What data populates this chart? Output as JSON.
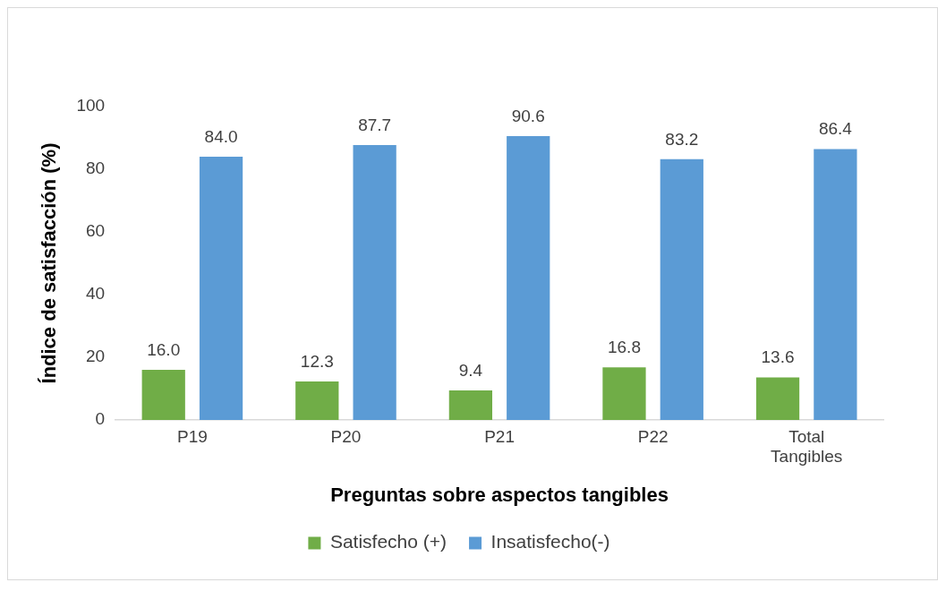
{
  "chart_data": {
    "type": "bar",
    "xlabel": "Preguntas sobre aspectos tangibles",
    "ylabel": "Índice de satisfacción (%)",
    "categories": [
      "P19",
      "P20",
      "P21",
      "P22",
      "Total Tangibles"
    ],
    "series": [
      {
        "name": "Satisfecho (+)",
        "color": "#70ad47",
        "values": [
          16.0,
          12.3,
          9.4,
          16.8,
          13.6
        ],
        "value_labels": [
          "16.0",
          "12.3",
          "9.4",
          "16.8",
          "13.6"
        ]
      },
      {
        "name": "Insatisfecho(-)",
        "color": "#5b9bd5",
        "values": [
          84.0,
          87.7,
          90.6,
          83.2,
          86.4
        ],
        "value_labels": [
          "84.0",
          "87.7",
          "90.6",
          "83.2",
          "86.4"
        ]
      }
    ],
    "ylim": [
      0,
      100
    ],
    "yticks": [
      0,
      20,
      40,
      60,
      80,
      100
    ],
    "grid": false,
    "legend": "bottom"
  }
}
